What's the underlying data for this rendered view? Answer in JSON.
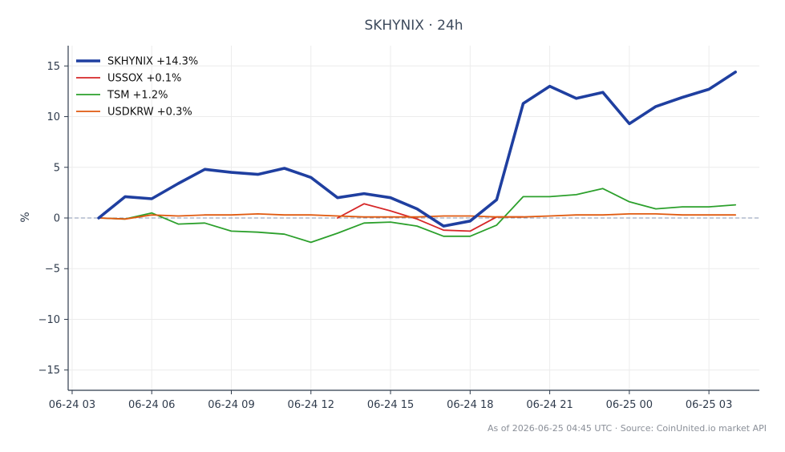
{
  "chart_data": {
    "type": "line",
    "title": "SKHYNIX · 24h",
    "xlabel": "",
    "ylabel": "%",
    "ylim": [
      -17,
      17
    ],
    "y_ticks": [
      -15,
      -10,
      -5,
      0,
      5,
      10,
      15
    ],
    "y_tick_labels": [
      "−15",
      "−10",
      "−5",
      "0",
      "5",
      "10",
      "15"
    ],
    "x_ticks": [
      {
        "t": 3,
        "label": "06-24 03"
      },
      {
        "t": 6,
        "label": "06-24 06"
      },
      {
        "t": 9,
        "label": "06-24 09"
      },
      {
        "t": 12,
        "label": "06-24 12"
      },
      {
        "t": 15,
        "label": "06-24 15"
      },
      {
        "t": 18,
        "label": "06-24 18"
      },
      {
        "t": 21,
        "label": "06-24 21"
      },
      {
        "t": 24,
        "label": "06-25 00"
      },
      {
        "t": 27,
        "label": "06-25 03"
      }
    ],
    "x_range": [
      2.85,
      28.9
    ],
    "grid": true,
    "zero_line": true,
    "legend_position": "top-left",
    "series": [
      {
        "name": "SKHYNIX +14.3%",
        "color": "#1f3fa0",
        "emphasis": true,
        "x": [
          4,
          5,
          6,
          7,
          8,
          9,
          10,
          11,
          12,
          13,
          14,
          15,
          16,
          17,
          18,
          19,
          20,
          21,
          22,
          23,
          24,
          25,
          26,
          27,
          28
        ],
        "values": [
          0,
          2.1,
          1.9,
          3.4,
          4.8,
          4.5,
          4.3,
          4.9,
          4.0,
          2.0,
          2.4,
          2.0,
          0.9,
          -0.8,
          -0.3,
          1.8,
          11.3,
          13.0,
          11.8,
          12.4,
          9.3,
          11.0,
          11.9,
          12.7,
          14.4
        ]
      },
      {
        "name": "USSOX +0.1%",
        "color": "#d62728",
        "emphasis": false,
        "x": [
          13,
          14,
          15,
          16,
          17,
          18,
          19,
          20
        ],
        "values": [
          0,
          1.4,
          0.7,
          -0.1,
          -1.2,
          -1.3,
          0.1,
          0.1
        ]
      },
      {
        "name": "TSM +1.2%",
        "color": "#2ca02c",
        "emphasis": false,
        "x": [
          4,
          5,
          6,
          7,
          8,
          9,
          10,
          11,
          12,
          13,
          14,
          15,
          16,
          17,
          18,
          19,
          20,
          21,
          22,
          23,
          24,
          25,
          26,
          27,
          28
        ],
        "values": [
          0,
          -0.1,
          0.5,
          -0.6,
          -0.5,
          -1.3,
          -1.4,
          -1.6,
          -2.4,
          -1.5,
          -0.5,
          -0.4,
          -0.8,
          -1.8,
          -1.8,
          -0.7,
          2.1,
          2.1,
          2.3,
          2.9,
          1.6,
          0.9,
          1.1,
          1.1,
          1.3
        ]
      },
      {
        "name": "USDKRW +0.3%",
        "color": "#e05a10",
        "emphasis": false,
        "x": [
          4,
          5,
          6,
          7,
          8,
          9,
          10,
          11,
          12,
          13,
          14,
          15,
          16,
          17,
          18,
          19,
          20,
          21,
          22,
          23,
          24,
          25,
          26,
          27,
          28
        ],
        "values": [
          0,
          -0.1,
          0.3,
          0.2,
          0.3,
          0.3,
          0.4,
          0.3,
          0.3,
          0.2,
          0.1,
          0.1,
          0.1,
          0.2,
          0.2,
          0.1,
          0.1,
          0.2,
          0.3,
          0.3,
          0.4,
          0.4,
          0.3,
          0.3,
          0.3
        ]
      }
    ]
  },
  "footer": "As of 2026-06-25 04:45 UTC · Source: CoinUnited.io market API"
}
